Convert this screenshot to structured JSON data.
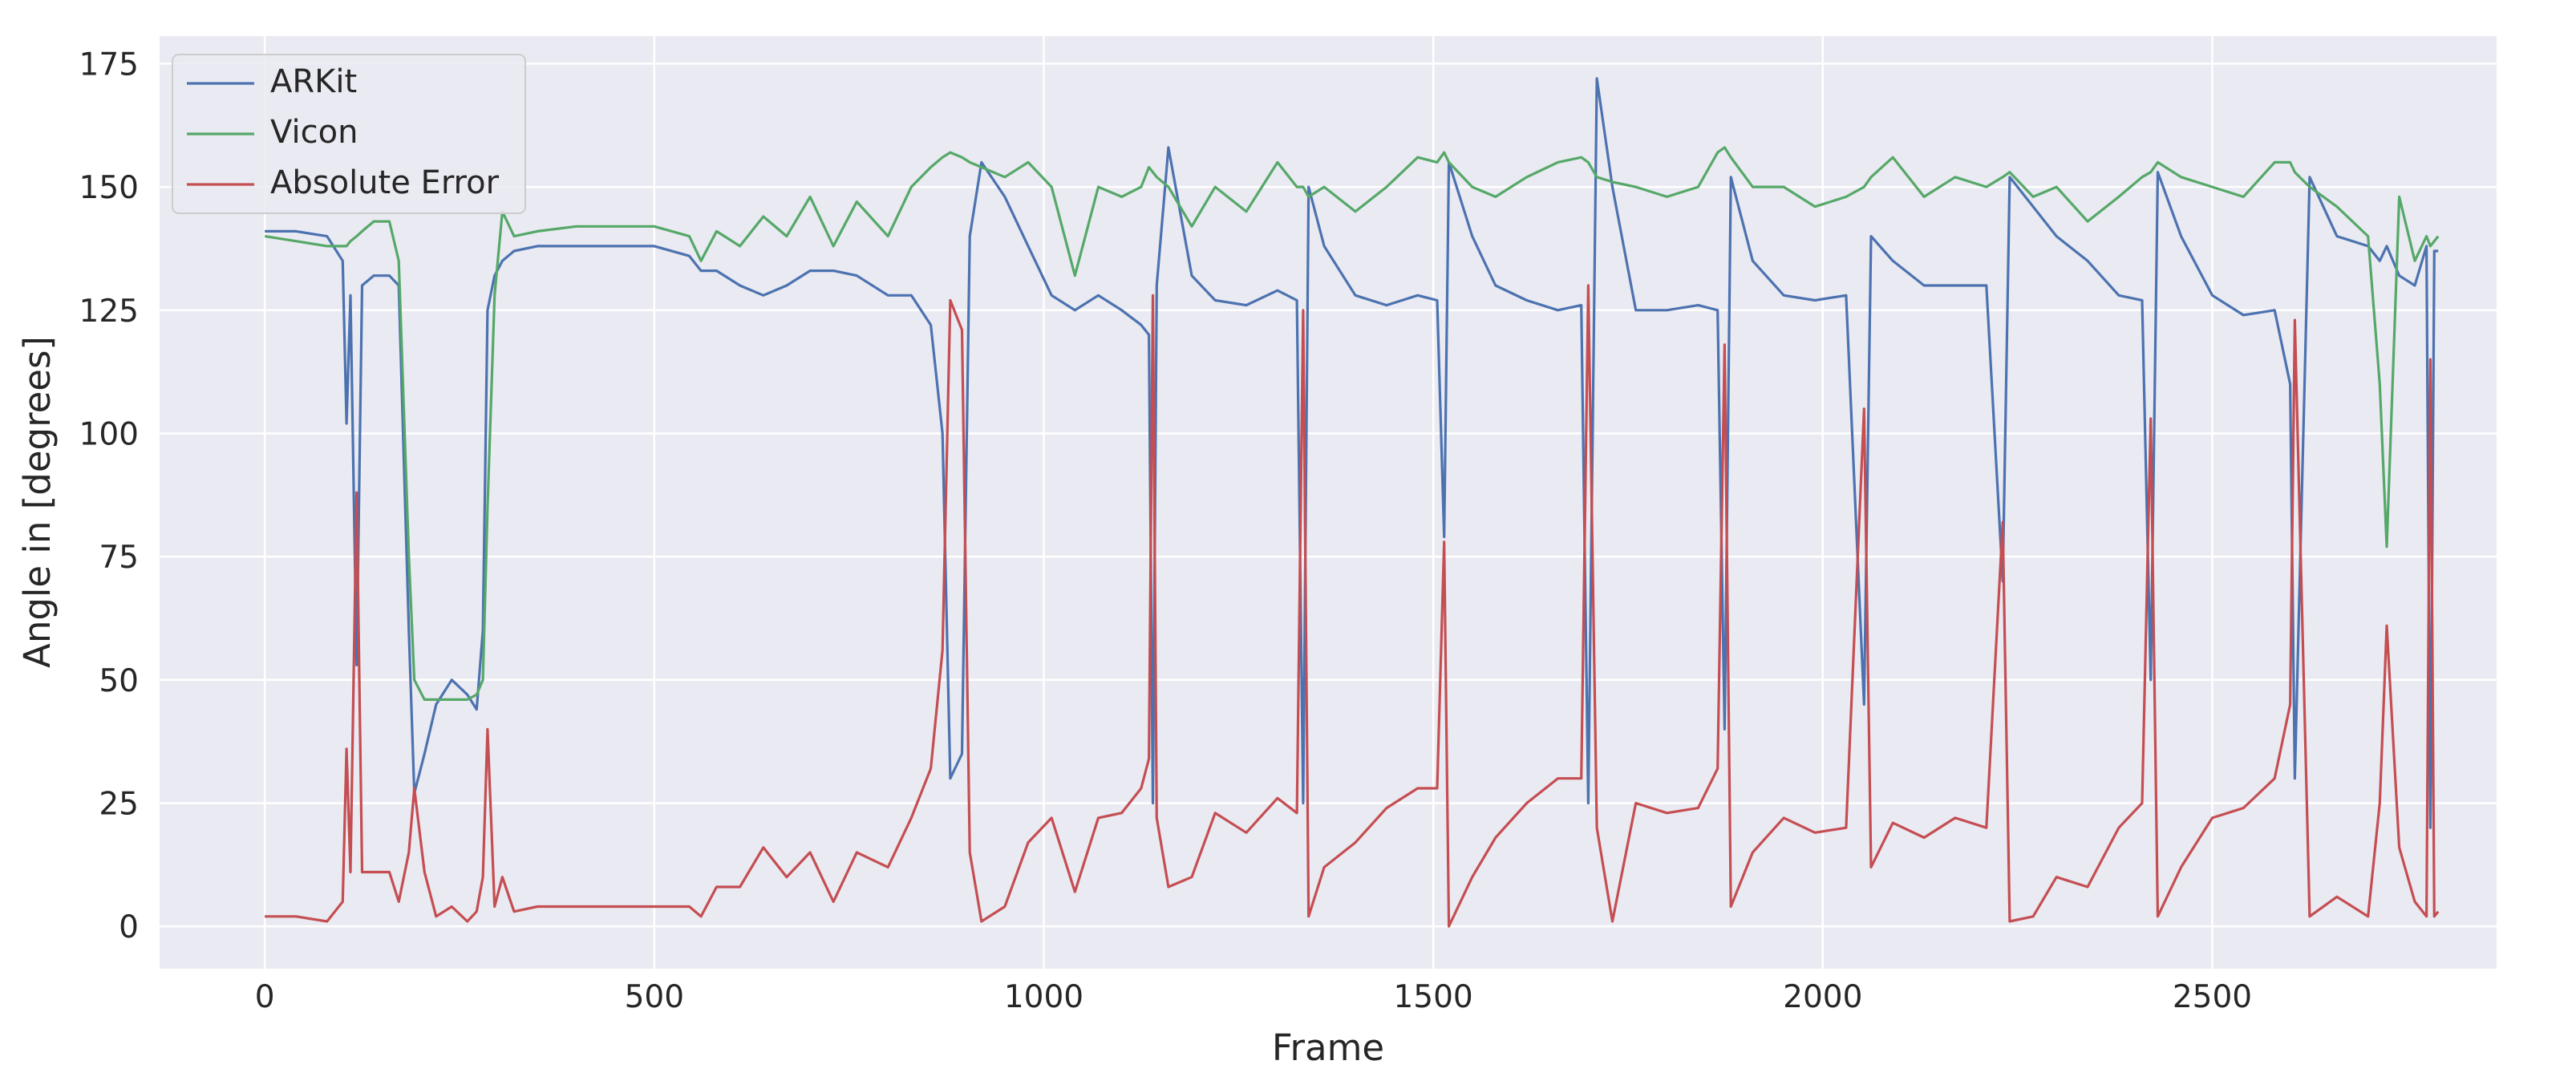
{
  "chart_data": {
    "type": "line",
    "xlabel": "Frame",
    "ylabel": "Angle in [degrees]",
    "xlim": [
      -135,
      2865
    ],
    "ylim": [
      -8.6,
      180.6
    ],
    "xticks": [
      0,
      500,
      1000,
      1500,
      2000,
      2500
    ],
    "yticks": [
      0,
      25,
      50,
      75,
      100,
      125,
      150,
      175
    ],
    "grid": true,
    "legend": "upper-left",
    "x": [
      0,
      40,
      80,
      100,
      105,
      110,
      118,
      125,
      140,
      160,
      172,
      185,
      192,
      205,
      220,
      240,
      260,
      272,
      280,
      286,
      295,
      305,
      320,
      350,
      400,
      450,
      500,
      545,
      560,
      580,
      610,
      640,
      670,
      700,
      730,
      760,
      800,
      830,
      855,
      870,
      880,
      895,
      905,
      920,
      950,
      980,
      1010,
      1040,
      1070,
      1100,
      1125,
      1135,
      1140,
      1145,
      1160,
      1190,
      1220,
      1260,
      1300,
      1325,
      1333,
      1340,
      1360,
      1400,
      1440,
      1480,
      1505,
      1514,
      1520,
      1550,
      1580,
      1620,
      1660,
      1690,
      1699,
      1710,
      1730,
      1760,
      1800,
      1840,
      1865,
      1874,
      1882,
      1910,
      1950,
      1990,
      2030,
      2053,
      2062,
      2090,
      2130,
      2170,
      2210,
      2231,
      2240,
      2270,
      2300,
      2340,
      2380,
      2410,
      2421,
      2430,
      2460,
      2500,
      2540,
      2580,
      2600,
      2606,
      2625,
      2660,
      2700,
      2715,
      2724,
      2740,
      2760,
      2775,
      2780,
      2785,
      2790
    ],
    "series": [
      {
        "name": "ARKit",
        "color": "#4c72b0",
        "values": [
          141,
          141,
          140,
          135,
          102,
          128,
          53,
          130,
          132,
          132,
          130,
          60,
          27,
          35,
          45,
          50,
          47,
          44,
          60,
          125,
          132,
          135,
          137,
          138,
          138,
          138,
          138,
          136,
          133,
          133,
          130,
          128,
          130,
          133,
          133,
          132,
          128,
          128,
          122,
          100,
          30,
          35,
          140,
          155,
          148,
          138,
          128,
          125,
          128,
          125,
          122,
          120,
          25,
          130,
          158,
          132,
          127,
          126,
          129,
          127,
          25,
          150,
          138,
          128,
          126,
          128,
          127,
          79,
          155,
          140,
          130,
          127,
          125,
          126,
          25,
          172,
          150,
          125,
          125,
          126,
          125,
          40,
          152,
          135,
          128,
          127,
          128,
          45,
          140,
          135,
          130,
          130,
          130,
          70,
          152,
          146,
          140,
          135,
          128,
          127,
          50,
          153,
          140,
          128,
          124,
          125,
          110,
          30,
          152,
          140,
          138,
          135,
          138,
          132,
          130,
          138,
          20,
          137,
          137
        ]
      },
      {
        "name": "Vicon",
        "color": "#55a868",
        "values": [
          140,
          139,
          138,
          138,
          138,
          139,
          140,
          141,
          143,
          143,
          135,
          75,
          50,
          46,
          46,
          46,
          46,
          47,
          50,
          85,
          128,
          145,
          140,
          141,
          142,
          142,
          142,
          140,
          135,
          141,
          138,
          144,
          140,
          148,
          138,
          147,
          140,
          150,
          154,
          156,
          157,
          156,
          155,
          154,
          152,
          155,
          150,
          132,
          150,
          148,
          150,
          154,
          153,
          152,
          150,
          142,
          150,
          145,
          155,
          150,
          150,
          148,
          150,
          145,
          150,
          156,
          155,
          157,
          155,
          150,
          148,
          152,
          155,
          156,
          155,
          152,
          151,
          150,
          148,
          150,
          157,
          158,
          156,
          150,
          150,
          146,
          148,
          150,
          152,
          156,
          148,
          152,
          150,
          152,
          153,
          148,
          150,
          143,
          148,
          152,
          153,
          155,
          152,
          150,
          148,
          155,
          155,
          153,
          150,
          146,
          140,
          110,
          77,
          148,
          135,
          140,
          138,
          139,
          140
        ]
      },
      {
        "name": "Absolute Error",
        "color": "#c44e52",
        "values": [
          2,
          2,
          1,
          5,
          36,
          11,
          88,
          11,
          11,
          11,
          5,
          15,
          28,
          11,
          2,
          4,
          1,
          3,
          10,
          40,
          4,
          10,
          3,
          4,
          4,
          4,
          4,
          4,
          2,
          8,
          8,
          16,
          10,
          15,
          5,
          15,
          12,
          22,
          32,
          56,
          127,
          121,
          15,
          1,
          4,
          17,
          22,
          7,
          22,
          23,
          28,
          34,
          128,
          22,
          8,
          10,
          23,
          19,
          26,
          23,
          125,
          2,
          12,
          17,
          24,
          28,
          28,
          78,
          0,
          10,
          18,
          25,
          30,
          30,
          130,
          20,
          1,
          25,
          23,
          24,
          32,
          118,
          4,
          15,
          22,
          19,
          20,
          105,
          12,
          21,
          18,
          22,
          20,
          82,
          1,
          2,
          10,
          8,
          20,
          25,
          103,
          2,
          12,
          22,
          24,
          30,
          45,
          123,
          2,
          6,
          2,
          25,
          61,
          16,
          5,
          2,
          115,
          2,
          3
        ]
      }
    ]
  }
}
